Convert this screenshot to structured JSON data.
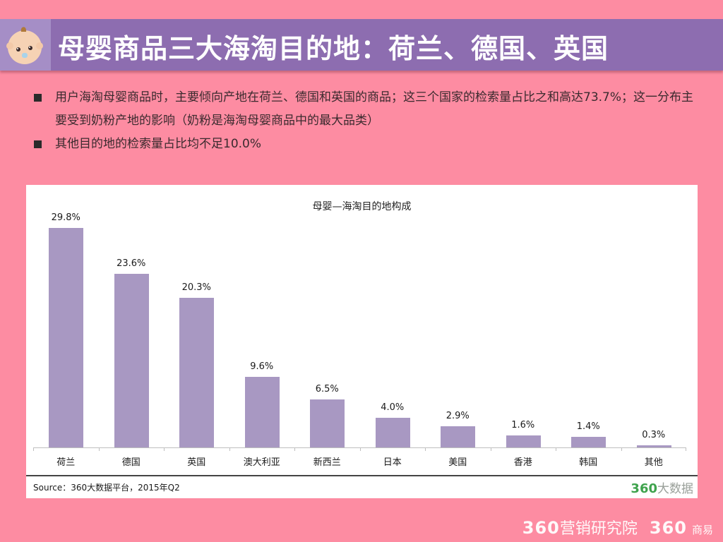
{
  "header": {
    "title": "母婴商品三大海淘目的地：荷兰、德国、英国",
    "icon": "baby-face-icon"
  },
  "bullets": [
    "用户海淘母婴商品时，主要倾向产地在荷兰、德国和英国的商品；这三个国家的检索量占比之和高达73.7%；这一分布主要受到奶粉产地的影响（奶粉是海淘母婴商品中的最大品类）",
    "其他目的地的检索量占比均不足10.0%"
  ],
  "chart_data": {
    "type": "bar",
    "title": "母婴—海淘目的地构成",
    "categories": [
      "荷兰",
      "德国",
      "英国",
      "澳大利亚",
      "新西兰",
      "日本",
      "美国",
      "香港",
      "韩国",
      "其他"
    ],
    "values": [
      29.8,
      23.6,
      20.3,
      9.6,
      6.5,
      4.0,
      2.9,
      1.6,
      1.4,
      0.3
    ],
    "value_labels": [
      "29.8%",
      "23.6%",
      "20.3%",
      "9.6%",
      "6.5%",
      "4.0%",
      "2.9%",
      "1.6%",
      "1.4%",
      "0.3%"
    ],
    "xlabel": "",
    "ylabel": "",
    "ylim": [
      0,
      30
    ],
    "grid": false,
    "legend": "none",
    "bar_color": "#a898c2"
  },
  "chart_footer": {
    "source": "Source：360大数据平台，2015年Q2",
    "brand_num": "360",
    "brand_cn": "大数据"
  },
  "footer": {
    "brand1_num": "360",
    "brand1_cn": "营销研究院",
    "brand2_num": "360",
    "brand2_cn": "商易"
  },
  "colors": {
    "background": "#fd8ca2",
    "title_bar": "#8d6db0",
    "icon_box": "#a58ec6",
    "bar": "#a898c2",
    "brand_green": "#3fa34d"
  }
}
